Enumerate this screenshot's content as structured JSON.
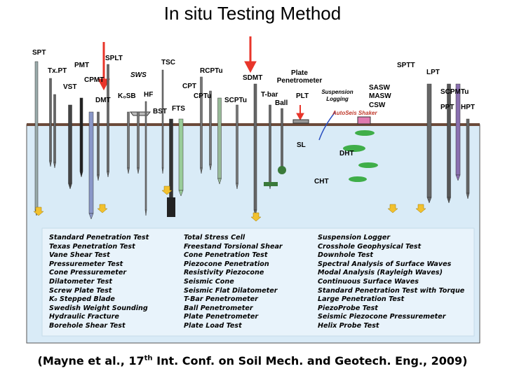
{
  "title": "In situ Testing Method",
  "labels": [
    "SPT",
    "Tx.PT",
    "PMT",
    "SPLT",
    "TSC",
    "SWS",
    "RCPTu",
    "SDMT",
    "Plate Penetrometer",
    "SPTT",
    "LPT",
    "VST",
    "CPMT",
    "K₀SB",
    "HF",
    "CPT",
    "CPTu",
    "SCPTu",
    "T-bar",
    "PLT",
    "Suspension Logging",
    "SASW",
    "MASW",
    "CSW",
    "SCPMTu",
    "PPT",
    "HPT",
    "DMT",
    "BST",
    "FTS",
    "Ball",
    "AutoSeis Shaker",
    "SL",
    "DHT",
    "CHT"
  ],
  "legend": {
    "columns": [
      [
        "Standard Penetration Test",
        "Texas Penetration Test",
        "Vane Shear Test",
        "Pressuremeter Test",
        "Cone Pressuremeter",
        "Dilatometer Test",
        "Screw Plate Test",
        "K₀ Stepped Blade",
        "Swedish Weight Sounding",
        "Hydraulic Fracture",
        "Borehole Shear Test"
      ],
      [
        "Total Stress Cell",
        "Freestand Torsional Shear",
        "Cone Penetration Test",
        "Piezocone Penetration",
        "Resistivity Piezocone",
        "Seismic Cone",
        "Seismic Flat Dilatometer",
        "T-Bar Penetrometer",
        "Ball Penetrometer",
        "Plate Penetrometer",
        "Plate Load Test"
      ],
      [
        "Suspension Logger",
        "Crosshole Geophysical Test",
        "Downhole Test",
        "Spectral Analysis of Surface Waves",
        "Modal Analysis (Rayleigh Waves)",
        "Continuous Surface Waves",
        "Standard Penetration Test with Torque",
        "Large Penetration Test",
        "PiezoProbe Test",
        "Seismic Piezocone Pressuremeter",
        "Helix Probe Test"
      ]
    ]
  },
  "citation": {
    "before": "(Mayne et al., 17",
    "superscript": "th",
    "after": " Int. Conf. on Soil Mech. and Geotech. Eng., 2009)"
  }
}
